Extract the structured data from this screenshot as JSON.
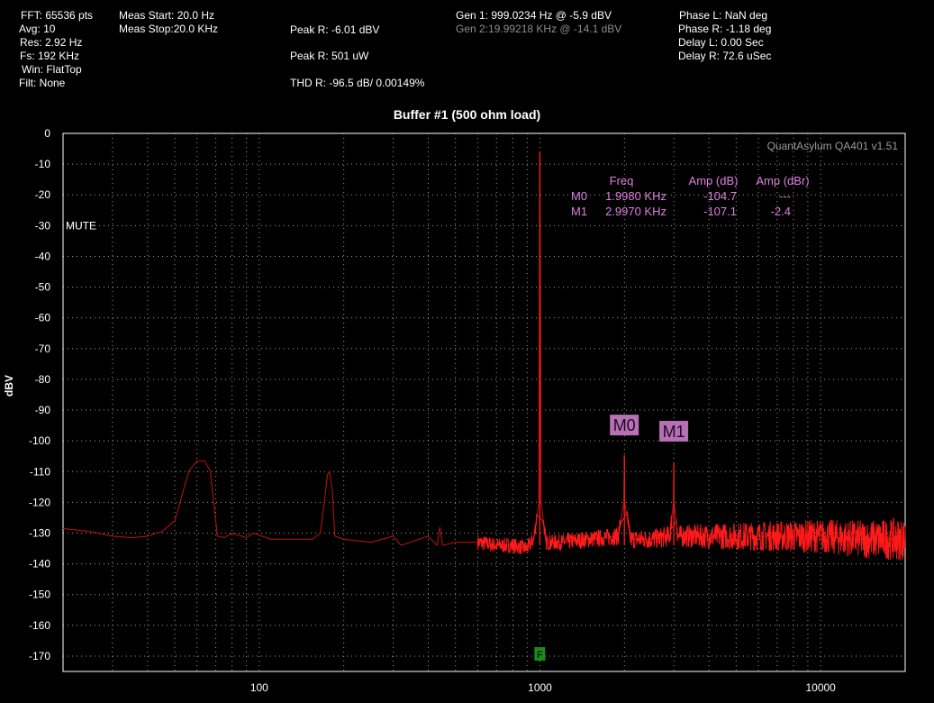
{
  "readout": {
    "col1": [
      "FFT: 65536 pts",
      "Avg: 10",
      "Res: 2.92 Hz",
      "Fs: 192 KHz",
      "Win: FlatTop",
      "Filt: None"
    ],
    "col2": [
      "Meas Start: 20.0 Hz",
      "Meas Stop:20.0 KHz"
    ],
    "col3": [
      "Peak R: -6.01 dBV",
      "Peak R: 501 uW",
      "THD R: -96.5 dB/ 0.00149%"
    ],
    "gen1": "Gen 1: 999.0234 Hz @ -5.9  dBV",
    "gen2": "Gen 2:19.99218 KHz @ -14.1  dBV",
    "col5": [
      "Phase L: NaN deg",
      "Phase R: -1.18 deg",
      "Delay L: 0.00 Sec",
      "Delay R: 72.6 uSec"
    ]
  },
  "mute_label": "MUTE",
  "watermark": "QuantAsylum QA401 v1.51",
  "fundamental_marker": "F",
  "marker_table": {
    "headers": [
      "Freq",
      "Amp (dB)",
      "Amp (dBr)"
    ],
    "rows": [
      {
        "name": "M0",
        "freq": "1.9980 KHz",
        "amp": "-104.7",
        "ampr": "---"
      },
      {
        "name": "M1",
        "freq": "2.9970 KHz",
        "amp": "-107.1",
        "ampr": "-2.4"
      }
    ]
  },
  "colors": {
    "trace": "#ff1a1a",
    "trace_dim": "#b01010",
    "marker_text": "#e07ee0",
    "marker_box": "#b670b6",
    "grid": "#9a9a9a",
    "fmarker": "#1a8a1a"
  },
  "chart_data": {
    "type": "line",
    "title": "Buffer #1 (500 ohm load)",
    "ylabel": "dBV",
    "xlabel": "",
    "xscale": "log",
    "xlim": [
      20,
      20000
    ],
    "ylim": [
      -175,
      0
    ],
    "yticks": [
      0,
      -10,
      -20,
      -30,
      -40,
      -50,
      -60,
      -70,
      -80,
      -90,
      -100,
      -110,
      -120,
      -130,
      -140,
      -150,
      -160,
      -170
    ],
    "xticks": [
      100,
      1000,
      10000
    ],
    "xtick_labels": [
      "100",
      "1000",
      "10000"
    ],
    "grid": true,
    "series": [
      {
        "points": [
          [
            20,
            -128.5
          ],
          [
            25,
            -129.5
          ],
          [
            30,
            -131
          ],
          [
            35,
            -131.5
          ],
          [
            40,
            -131
          ],
          [
            45,
            -129.5
          ],
          [
            50,
            -126
          ],
          [
            53,
            -118
          ],
          [
            56,
            -110
          ],
          [
            60,
            -106.5
          ],
          [
            64,
            -106.5
          ],
          [
            67,
            -110
          ],
          [
            69,
            -121
          ],
          [
            71,
            -131
          ],
          [
            75,
            -131.5
          ],
          [
            80,
            -130
          ],
          [
            90,
            -131.5
          ],
          [
            95,
            -130
          ],
          [
            110,
            -132
          ],
          [
            130,
            -132
          ],
          [
            155,
            -132
          ],
          [
            165,
            -130
          ],
          [
            170,
            -121
          ],
          [
            175,
            -111
          ],
          [
            178,
            -110
          ],
          [
            182,
            -116
          ],
          [
            186,
            -131
          ],
          [
            200,
            -132
          ],
          [
            250,
            -133
          ],
          [
            300,
            -131
          ],
          [
            320,
            -134
          ],
          [
            400,
            -131
          ],
          [
            430,
            -134
          ],
          [
            440,
            -128
          ],
          [
            450,
            -134
          ],
          [
            500,
            -133
          ],
          [
            600,
            -133
          ],
          [
            700,
            -134
          ],
          [
            800,
            -134
          ],
          [
            900,
            -135
          ],
          [
            950,
            -132
          ],
          [
            990,
            -120
          ],
          [
            999,
            -6.0
          ],
          [
            1010,
            -120
          ],
          [
            1050,
            -133
          ],
          [
            1200,
            -133
          ],
          [
            1500,
            -132
          ],
          [
            1900,
            -131
          ],
          [
            1990,
            -120
          ],
          [
            1998,
            -104.7
          ],
          [
            2005,
            -120
          ],
          [
            2100,
            -132
          ],
          [
            2500,
            -132
          ],
          [
            2900,
            -131
          ],
          [
            2990,
            -120
          ],
          [
            2997,
            -107.1
          ],
          [
            3005,
            -120
          ],
          [
            3100,
            -131
          ],
          [
            4000,
            -131
          ],
          [
            5000,
            -131
          ],
          [
            7000,
            -131
          ],
          [
            10000,
            -131
          ],
          [
            14000,
            -132
          ],
          [
            20000,
            -132
          ]
        ],
        "noise_points": [
          [
            600,
            2.5
          ],
          [
            1000,
            2.5
          ],
          [
            2000,
            3
          ],
          [
            3000,
            3.5
          ],
          [
            5000,
            4.5
          ],
          [
            10000,
            5.5
          ],
          [
            20000,
            7
          ]
        ]
      }
    ],
    "markers": [
      {
        "name": "M0",
        "x": 1998,
        "y": -104.7
      },
      {
        "name": "M1",
        "x": 2997,
        "y": -107.1
      }
    ],
    "fundamental": {
      "name": "F",
      "x": 999
    }
  }
}
